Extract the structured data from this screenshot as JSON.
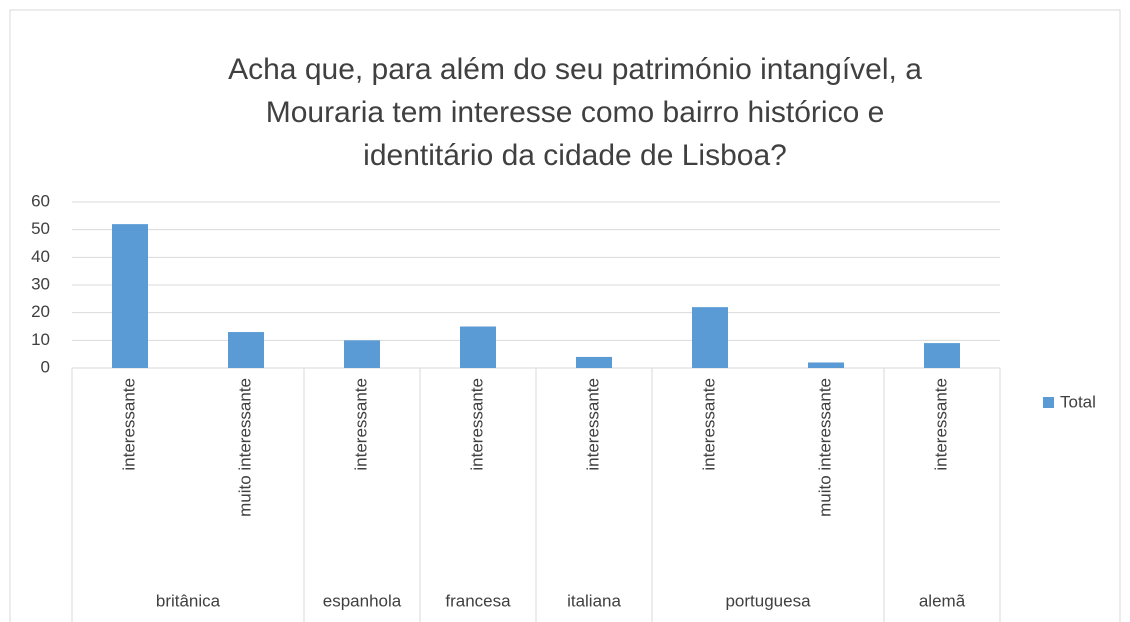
{
  "chart_data": {
    "type": "bar",
    "title": "Acha que, para além do seu património intangível, a Mouraria tem interesse como bairro histórico e identitário da cidade de Lisboa?",
    "category_groups": [
      {
        "name": "britânica",
        "categories": [
          "interessante",
          "muito interessante"
        ]
      },
      {
        "name": "espanhola",
        "categories": [
          "interessante"
        ]
      },
      {
        "name": "francesa",
        "categories": [
          "interessante"
        ]
      },
      {
        "name": "italiana",
        "categories": [
          "interessante"
        ]
      },
      {
        "name": "portuguesa",
        "categories": [
          "interessante",
          "muito interessante"
        ]
      },
      {
        "name": "alemã",
        "categories": [
          "interessante"
        ]
      }
    ],
    "series": [
      {
        "name": "Total",
        "color": "#5b9bd5",
        "values": [
          52,
          13,
          10,
          15,
          4,
          22,
          2,
          9
        ]
      }
    ],
    "ylim": [
      0,
      60
    ],
    "yticks": [
      0,
      10,
      20,
      30,
      40,
      50,
      60
    ],
    "grid": true,
    "legend": "right"
  }
}
